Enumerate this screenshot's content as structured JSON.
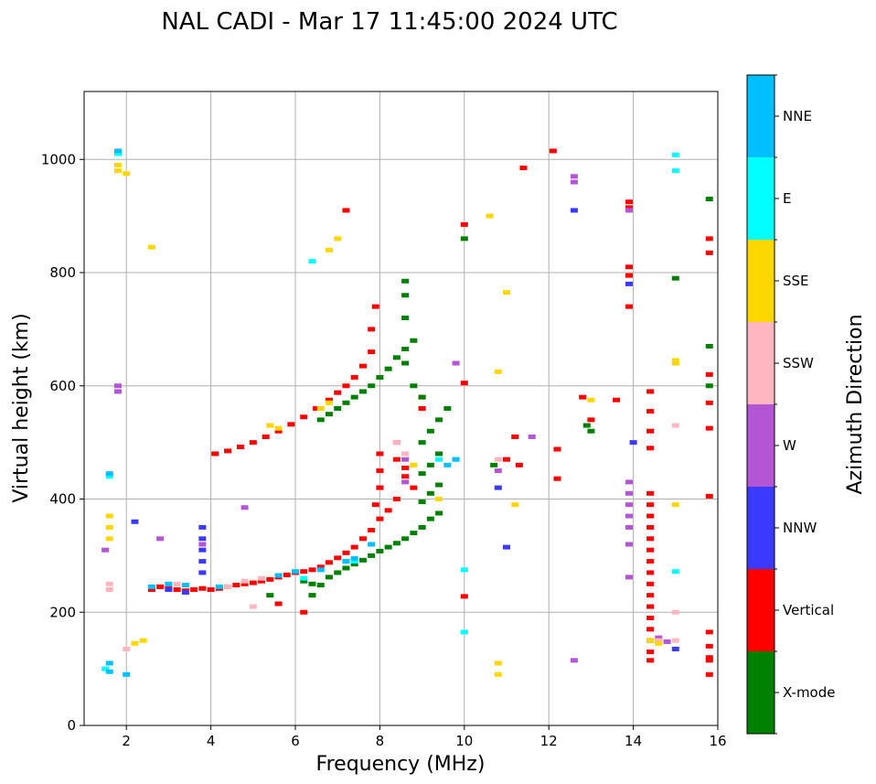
{
  "chart_data": {
    "type": "scatter",
    "title": "NAL CADI - Mar 17 11:45:00 2024 UTC",
    "xlabel": "Frequency (MHz)",
    "ylabel": "Virtual height (km)",
    "xlim": [
      1,
      16
    ],
    "ylim": [
      0,
      1120
    ],
    "xticks": [
      2,
      4,
      6,
      8,
      10,
      12,
      14,
      16
    ],
    "yticks": [
      0,
      200,
      400,
      600,
      800,
      1000
    ],
    "grid": true,
    "colorbar": {
      "label": "Azimuth Direction",
      "categories": [
        "X-mode",
        "Vertical",
        "NNW",
        "W",
        "SSW",
        "SSE",
        "E",
        "NNE"
      ],
      "colors": [
        "#008000",
        "#ff0000",
        "#3a3aff",
        "#b455d6",
        "#ffb6c1",
        "#ffd700",
        "#00ffff",
        "#00bfff"
      ]
    },
    "series": [
      {
        "name": "Vertical",
        "color": "#ff0000",
        "points": [
          [
            2.6,
            240
          ],
          [
            2.8,
            245
          ],
          [
            3.0,
            242
          ],
          [
            3.2,
            240
          ],
          [
            3.4,
            238
          ],
          [
            3.6,
            240
          ],
          [
            3.8,
            242
          ],
          [
            4.0,
            240
          ],
          [
            4.2,
            242
          ],
          [
            4.4,
            245
          ],
          [
            4.6,
            248
          ],
          [
            4.8,
            250
          ],
          [
            5.0,
            252
          ],
          [
            5.2,
            255
          ],
          [
            5.4,
            258
          ],
          [
            5.6,
            262
          ],
          [
            5.8,
            266
          ],
          [
            6.0,
            270
          ],
          [
            6.2,
            272
          ],
          [
            6.4,
            275
          ],
          [
            6.6,
            280
          ],
          [
            6.8,
            288
          ],
          [
            7.0,
            296
          ],
          [
            7.2,
            305
          ],
          [
            7.4,
            315
          ],
          [
            7.6,
            330
          ],
          [
            7.8,
            345
          ],
          [
            8.0,
            365
          ],
          [
            7.9,
            390
          ],
          [
            8.0,
            420
          ],
          [
            8.0,
            450
          ],
          [
            8.0,
            480
          ],
          [
            8.4,
            500
          ],
          [
            8.4,
            470
          ],
          [
            8.6,
            455
          ],
          [
            8.6,
            440
          ],
          [
            8.8,
            420
          ],
          [
            8.4,
            400
          ],
          [
            8.2,
            380
          ],
          [
            4.1,
            480
          ],
          [
            4.4,
            485
          ],
          [
            4.7,
            492
          ],
          [
            5.0,
            500
          ],
          [
            5.3,
            510
          ],
          [
            5.6,
            520
          ],
          [
            5.9,
            532
          ],
          [
            6.2,
            545
          ],
          [
            6.5,
            560
          ],
          [
            6.8,
            575
          ],
          [
            7.0,
            588
          ],
          [
            7.2,
            600
          ],
          [
            7.4,
            615
          ],
          [
            7.6,
            635
          ],
          [
            7.8,
            660
          ],
          [
            7.8,
            700
          ],
          [
            7.9,
            740
          ],
          [
            7.2,
            910
          ],
          [
            11.4,
            985
          ],
          [
            12.1,
            1015
          ],
          [
            10.0,
            885
          ],
          [
            12.8,
            580
          ],
          [
            13.0,
            540
          ],
          [
            13.6,
            575
          ],
          [
            12.2,
            488
          ],
          [
            12.2,
            436
          ],
          [
            11.2,
            510
          ],
          [
            11.0,
            470
          ],
          [
            11.3,
            460
          ],
          [
            14.4,
            410
          ],
          [
            14.4,
            390
          ],
          [
            14.4,
            370
          ],
          [
            14.4,
            350
          ],
          [
            14.4,
            330
          ],
          [
            14.4,
            310
          ],
          [
            14.4,
            290
          ],
          [
            14.4,
            270
          ],
          [
            14.4,
            250
          ],
          [
            14.4,
            230
          ],
          [
            14.4,
            210
          ],
          [
            14.4,
            190
          ],
          [
            14.4,
            170
          ],
          [
            14.4,
            150
          ],
          [
            14.4,
            130
          ],
          [
            14.4,
            115
          ],
          [
            14.4,
            555
          ],
          [
            14.4,
            590
          ],
          [
            14.4,
            520
          ],
          [
            14.4,
            490
          ],
          [
            13.9,
            925
          ],
          [
            13.9,
            915
          ],
          [
            13.9,
            740
          ],
          [
            13.9,
            795
          ],
          [
            13.9,
            810
          ],
          [
            15.8,
            860
          ],
          [
            15.8,
            835
          ],
          [
            15.8,
            620
          ],
          [
            15.8,
            570
          ],
          [
            15.8,
            525
          ],
          [
            15.8,
            405
          ],
          [
            15.8,
            165
          ],
          [
            15.8,
            140
          ],
          [
            15.8,
            120
          ],
          [
            15.8,
            115
          ],
          [
            15.8,
            90
          ],
          [
            9.0,
            580
          ],
          [
            9.0,
            560
          ],
          [
            10.0,
            228
          ],
          [
            10.0,
            605
          ],
          [
            5.6,
            215
          ],
          [
            6.2,
            200
          ]
        ]
      },
      {
        "name": "X-mode",
        "color": "#008000",
        "points": [
          [
            6.2,
            255
          ],
          [
            6.4,
            250
          ],
          [
            6.6,
            248
          ],
          [
            6.8,
            262
          ],
          [
            7.0,
            270
          ],
          [
            7.2,
            278
          ],
          [
            7.4,
            285
          ],
          [
            7.6,
            292
          ],
          [
            7.8,
            300
          ],
          [
            8.0,
            308
          ],
          [
            8.2,
            315
          ],
          [
            8.4,
            322
          ],
          [
            8.6,
            330
          ],
          [
            8.8,
            340
          ],
          [
            9.0,
            350
          ],
          [
            9.2,
            365
          ],
          [
            9.4,
            375
          ],
          [
            9.0,
            395
          ],
          [
            9.2,
            410
          ],
          [
            9.4,
            425
          ],
          [
            9.0,
            445
          ],
          [
            9.2,
            460
          ],
          [
            9.4,
            480
          ],
          [
            9.0,
            500
          ],
          [
            9.2,
            520
          ],
          [
            9.4,
            540
          ],
          [
            9.6,
            560
          ],
          [
            9.0,
            580
          ],
          [
            8.8,
            600
          ],
          [
            8.6,
            640
          ],
          [
            8.8,
            680
          ],
          [
            8.6,
            720
          ],
          [
            8.6,
            760
          ],
          [
            8.6,
            785
          ],
          [
            6.6,
            540
          ],
          [
            6.8,
            550
          ],
          [
            7.0,
            560
          ],
          [
            7.2,
            570
          ],
          [
            7.4,
            580
          ],
          [
            7.6,
            590
          ],
          [
            7.8,
            600
          ],
          [
            8.0,
            615
          ],
          [
            8.2,
            630
          ],
          [
            8.4,
            650
          ],
          [
            8.6,
            665
          ],
          [
            10.0,
            860
          ],
          [
            15.0,
            790
          ],
          [
            15.8,
            930
          ],
          [
            15.8,
            670
          ],
          [
            15.8,
            600
          ],
          [
            12.9,
            530
          ],
          [
            13.0,
            520
          ],
          [
            10.7,
            460
          ],
          [
            6.4,
            230
          ],
          [
            5.4,
            230
          ]
        ]
      },
      {
        "name": "NNW",
        "color": "#3a3aff",
        "points": [
          [
            3.8,
            350
          ],
          [
            3.8,
            330
          ],
          [
            3.8,
            310
          ],
          [
            3.8,
            290
          ],
          [
            3.8,
            270
          ],
          [
            2.2,
            360
          ],
          [
            12.6,
            910
          ],
          [
            13.9,
            780
          ],
          [
            14.0,
            500
          ],
          [
            14.6,
            150
          ],
          [
            15.0,
            135
          ],
          [
            11.0,
            315
          ],
          [
            10.8,
            420
          ],
          [
            3.0,
            240
          ],
          [
            3.4,
            235
          ]
        ]
      },
      {
        "name": "W",
        "color": "#b455d6",
        "points": [
          [
            12.6,
            970
          ],
          [
            12.6,
            960
          ],
          [
            13.9,
            910
          ],
          [
            13.9,
            430
          ],
          [
            13.9,
            410
          ],
          [
            13.9,
            390
          ],
          [
            13.9,
            370
          ],
          [
            13.9,
            350
          ],
          [
            13.9,
            320
          ],
          [
            13.9,
            262
          ],
          [
            12.6,
            115
          ],
          [
            8.6,
            470
          ],
          [
            8.6,
            430
          ],
          [
            10.8,
            450
          ],
          [
            11.6,
            510
          ],
          [
            1.8,
            600
          ],
          [
            1.8,
            590
          ],
          [
            4.8,
            385
          ],
          [
            3.8,
            320
          ],
          [
            2.8,
            330
          ],
          [
            1.5,
            310
          ],
          [
            9.8,
            640
          ],
          [
            14.6,
            155
          ],
          [
            14.8,
            148
          ]
        ]
      },
      {
        "name": "SSW",
        "color": "#ffb6c1",
        "points": [
          [
            1.6,
            250
          ],
          [
            1.6,
            240
          ],
          [
            2.0,
            135
          ],
          [
            3.2,
            250
          ],
          [
            4.4,
            245
          ],
          [
            4.8,
            255
          ],
          [
            5.2,
            260
          ],
          [
            8.4,
            500
          ],
          [
            8.6,
            480
          ],
          [
            15.0,
            530
          ],
          [
            15.0,
            200
          ],
          [
            15.0,
            150
          ],
          [
            14.6,
            150
          ],
          [
            10.8,
            470
          ],
          [
            5.0,
            210
          ]
        ]
      },
      {
        "name": "SSE",
        "color": "#ffd700",
        "points": [
          [
            1.6,
            370
          ],
          [
            1.6,
            350
          ],
          [
            1.6,
            330
          ],
          [
            1.8,
            990
          ],
          [
            1.8,
            980
          ],
          [
            2.0,
            975
          ],
          [
            2.6,
            845
          ],
          [
            6.8,
            840
          ],
          [
            7.0,
            860
          ],
          [
            10.6,
            900
          ],
          [
            11.0,
            765
          ],
          [
            10.8,
            625
          ],
          [
            13.0,
            575
          ],
          [
            15.0,
            645
          ],
          [
            15.0,
            640
          ],
          [
            15.0,
            390
          ],
          [
            14.6,
            145
          ],
          [
            14.4,
            150
          ],
          [
            11.2,
            390
          ],
          [
            10.8,
            110
          ],
          [
            10.8,
            90
          ],
          [
            9.4,
            400
          ],
          [
            8.8,
            460
          ],
          [
            6.6,
            560
          ],
          [
            6.8,
            570
          ],
          [
            5.6,
            525
          ],
          [
            5.4,
            530
          ],
          [
            2.4,
            150
          ],
          [
            2.2,
            145
          ]
        ]
      },
      {
        "name": "E",
        "color": "#00ffff",
        "points": [
          [
            1.6,
            440
          ],
          [
            1.5,
            100
          ],
          [
            1.8,
            1010
          ],
          [
            6.4,
            820
          ],
          [
            9.4,
            470
          ],
          [
            9.8,
            470
          ],
          [
            10.0,
            275
          ],
          [
            10.0,
            165
          ],
          [
            15.0,
            1008
          ],
          [
            15.0,
            980
          ],
          [
            15.0,
            272
          ],
          [
            7.2,
            290
          ],
          [
            7.4,
            290
          ],
          [
            6.2,
            260
          ]
        ]
      },
      {
        "name": "NNE",
        "color": "#00bfff",
        "points": [
          [
            1.6,
            445
          ],
          [
            1.6,
            110
          ],
          [
            1.6,
            95
          ],
          [
            1.8,
            1015
          ],
          [
            2.0,
            90
          ],
          [
            2.6,
            245
          ],
          [
            3.0,
            250
          ],
          [
            3.4,
            248
          ],
          [
            4.2,
            245
          ],
          [
            5.6,
            265
          ],
          [
            6.0,
            272
          ],
          [
            6.6,
            275
          ],
          [
            7.2,
            290
          ],
          [
            7.4,
            295
          ],
          [
            7.8,
            320
          ],
          [
            9.6,
            460
          ],
          [
            9.8,
            470
          ]
        ]
      }
    ]
  }
}
